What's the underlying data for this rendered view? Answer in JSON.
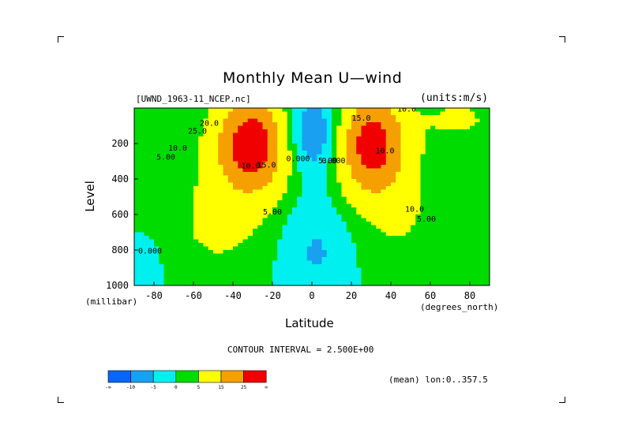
{
  "chart_data": {
    "type": "contour",
    "title": "Monthly Mean U—wind",
    "dataset_label": "[UWND_1963-11_NCEP.nc]",
    "units_label": "(units:m/s)",
    "xlabel": "Latitude",
    "ylabel": "Level",
    "x_unit_label": "(degrees_north)",
    "y_unit_label": "(millibar)",
    "x_ticks": [
      "-80",
      "-60",
      "-40",
      "-20",
      "0",
      "20",
      "40",
      "60",
      "80"
    ],
    "y_ticks": [
      "200",
      "400",
      "600",
      "800",
      "1000"
    ],
    "xlim": [
      -90,
      90
    ],
    "ylim": [
      1000,
      0
    ],
    "contour_interval_text": "CONTOUR INTERVAL = 2.500E+00",
    "mean_note": "(mean) lon:0..357.5",
    "jets": [
      {
        "lat": -30,
        "level": 200,
        "max": 32.5
      },
      {
        "lat": 30,
        "level": 200,
        "max": 30
      }
    ],
    "contour_labels": [
      {
        "text": "20.0",
        "lat": -52,
        "level": 100
      },
      {
        "text": "25.0",
        "lat": -58,
        "level": 145
      },
      {
        "text": "10.0",
        "lat": -68,
        "level": 240
      },
      {
        "text": "5.00",
        "lat": -74,
        "level": 290
      },
      {
        "text": "10.0",
        "lat": -31,
        "level": 340
      },
      {
        "text": "15.0",
        "lat": -23,
        "level": 335
      },
      {
        "text": "0.000",
        "lat": -7,
        "level": 300
      },
      {
        "text": "5.00",
        "lat": -20,
        "level": 600
      },
      {
        "text": "5.00",
        "lat": 8,
        "level": 310
      },
      {
        "text": "0.000",
        "lat": 11,
        "level": 310
      },
      {
        "text": "15.0",
        "lat": 25,
        "level": 70
      },
      {
        "text": "10.0",
        "lat": 37,
        "level": 255
      },
      {
        "text": "10.0",
        "lat": 52,
        "level": 585
      },
      {
        "text": "5.00",
        "lat": 58,
        "level": 640
      },
      {
        "text": "10.0",
        "lat": 48,
        "level": 20
      },
      {
        "text": "0.000",
        "lat": -82,
        "level": 820
      }
    ],
    "colorbar": {
      "colors": [
        "#0a64ff",
        "#1aa0f0",
        "#00f0f0",
        "#00dc00",
        "#ffff00",
        "#f5a000",
        "#f00000"
      ],
      "labels": [
        "-∞",
        "-10",
        "-5",
        "0",
        "5",
        "15",
        "25",
        "∞"
      ]
    }
  }
}
